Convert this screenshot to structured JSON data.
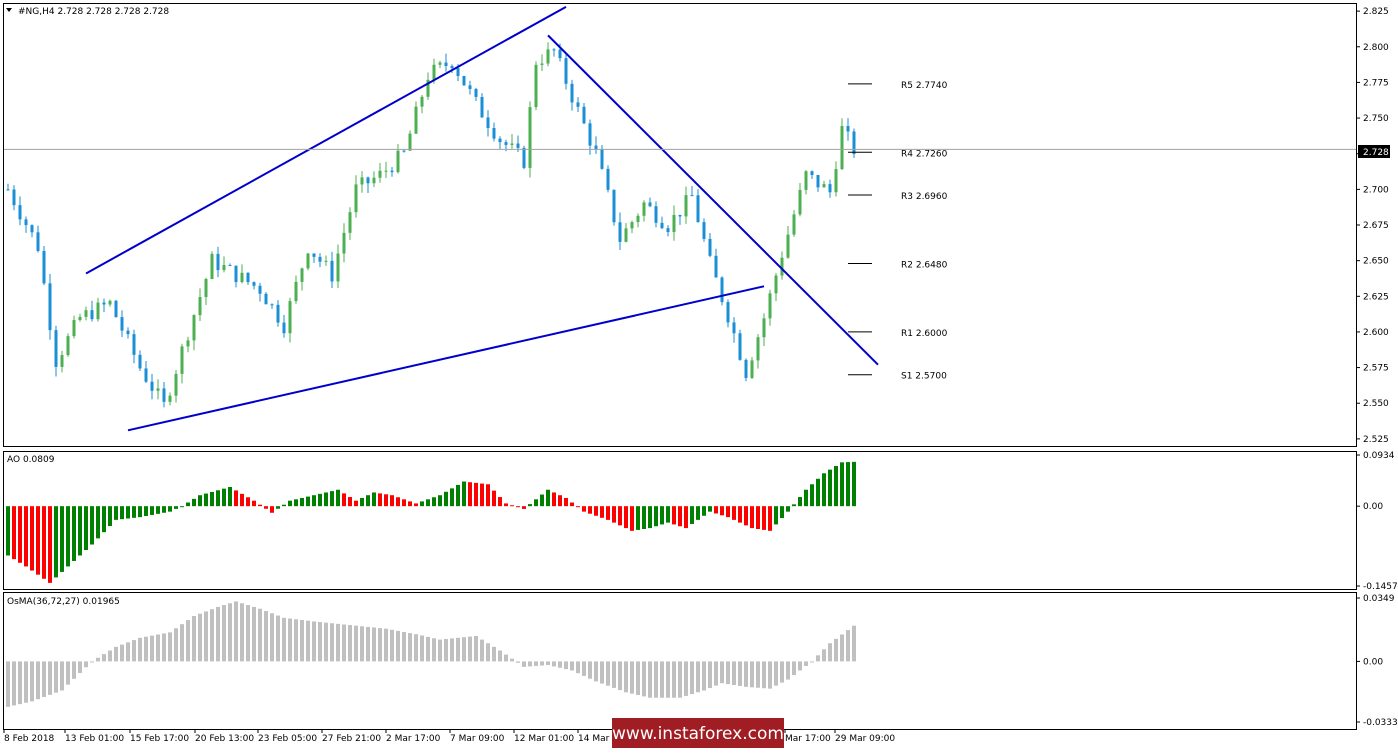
{
  "header": {
    "title": "#NG,H4  2.728 2.728 2.728 2.728"
  },
  "watermark": {
    "text": "www.instaforex.com"
  },
  "x_axis": {
    "labels": [
      "8 Feb 2018",
      "13 Feb 01:00",
      "15 Feb 17:00",
      "20 Feb 13:00",
      "23 Feb 05:00",
      "27 Feb 21:00",
      "2 Mar 17:00",
      "7 Mar 09:00",
      "12 Mar 01:00",
      "14 Mar",
      "",
      "",
      "Mar 17:00",
      "29 Mar 09:00"
    ]
  },
  "colors": {
    "bull": "#4caf50",
    "bear": "#1a8fd6",
    "ao_up": "#008000",
    "ao_down": "#ff0000",
    "osma": "#c0c0c0",
    "trend": "#0000cd",
    "grid": "#000000"
  },
  "chart_data": [
    {
      "type": "candlestick",
      "name": "price",
      "title": "#NG,H4  2.728 2.728 2.728 2.728",
      "ylim": [
        2.52,
        2.83
      ],
      "y_ticks": [
        "2.825",
        "2.800",
        "2.775",
        "2.750",
        "2.725",
        "2.700",
        "2.675",
        "2.650",
        "2.625",
        "2.600",
        "2.575",
        "2.550",
        "2.525"
      ],
      "current_price": "2.728",
      "pivot_levels": [
        {
          "label": "R5 2.7740",
          "value": 2.774
        },
        {
          "label": "R4 2.7260",
          "value": 2.726
        },
        {
          "label": "R3 2.6960",
          "value": 2.696
        },
        {
          "label": "R2 2.6480",
          "value": 2.648
        },
        {
          "label": "R1 2.6000",
          "value": 2.6
        },
        {
          "label": "S1 2.5700",
          "value": 2.57
        }
      ],
      "trend_lines": [
        {
          "name": "upper wedge line",
          "from": [
            13,
            2.641
          ],
          "to": [
            93,
            2.828
          ]
        },
        {
          "name": "lower wedge line",
          "from": [
            20,
            2.531
          ],
          "to": [
            126,
            2.632
          ]
        },
        {
          "name": "falling resistance line",
          "from": [
            90,
            2.808
          ],
          "to": [
            145,
            2.577
          ]
        }
      ],
      "close_path": [
        [
          0,
          2.7
        ],
        [
          5,
          2.66
        ],
        [
          8,
          2.58
        ],
        [
          12,
          2.61
        ],
        [
          17,
          2.62
        ],
        [
          22,
          2.575
        ],
        [
          26,
          2.548
        ],
        [
          30,
          2.6
        ],
        [
          34,
          2.65
        ],
        [
          38,
          2.64
        ],
        [
          42,
          2.63
        ],
        [
          46,
          2.605
        ],
        [
          50,
          2.66
        ],
        [
          54,
          2.64
        ],
        [
          58,
          2.7
        ],
        [
          62,
          2.71
        ],
        [
          66,
          2.725
        ],
        [
          70,
          2.78
        ],
        [
          74,
          2.79
        ],
        [
          78,
          2.76
        ],
        [
          82,
          2.735
        ],
        [
          86,
          2.72
        ],
        [
          88,
          2.79
        ],
        [
          91,
          2.797
        ],
        [
          95,
          2.755
        ],
        [
          98,
          2.725
        ],
        [
          102,
          2.665
        ],
        [
          106,
          2.69
        ],
        [
          110,
          2.675
        ],
        [
          114,
          2.695
        ],
        [
          117,
          2.648
        ],
        [
          120,
          2.612
        ],
        [
          123,
          2.572
        ],
        [
          126,
          2.61
        ],
        [
          129,
          2.655
        ],
        [
          133,
          2.71
        ],
        [
          137,
          2.698
        ],
        [
          139,
          2.742
        ],
        [
          141,
          2.728
        ]
      ]
    },
    {
      "type": "bar",
      "name": "AO",
      "title": "AO 0.0809",
      "ylim": [
        -0.1457,
        0.0934
      ],
      "y_ticks": [
        "0.0934",
        "0.00",
        "-0.1457"
      ],
      "last_value": 0.0809,
      "path": [
        [
          0,
          -0.09
        ],
        [
          3,
          -0.11
        ],
        [
          7,
          -0.14
        ],
        [
          10,
          -0.11
        ],
        [
          14,
          -0.07
        ],
        [
          18,
          -0.025
        ],
        [
          22,
          -0.02
        ],
        [
          27,
          -0.01
        ],
        [
          29,
          0.0
        ],
        [
          32,
          0.02
        ],
        [
          37,
          0.035
        ],
        [
          41,
          0.01
        ],
        [
          44,
          -0.012
        ],
        [
          47,
          0.01
        ],
        [
          51,
          0.02
        ],
        [
          55,
          0.03
        ],
        [
          58,
          0.01
        ],
        [
          61,
          0.025
        ],
        [
          64,
          0.02
        ],
        [
          68,
          0.005
        ],
        [
          72,
          0.02
        ],
        [
          76,
          0.045
        ],
        [
          80,
          0.04
        ],
        [
          83,
          0.005
        ],
        [
          86,
          -0.005
        ],
        [
          90,
          0.03
        ],
        [
          93,
          0.015
        ],
        [
          96,
          -0.01
        ],
        [
          100,
          -0.025
        ],
        [
          104,
          -0.045
        ],
        [
          107,
          -0.04
        ],
        [
          110,
          -0.03
        ],
        [
          113,
          -0.04
        ],
        [
          117,
          -0.01
        ],
        [
          120,
          -0.02
        ],
        [
          124,
          -0.04
        ],
        [
          127,
          -0.045
        ],
        [
          130,
          -0.01
        ],
        [
          133,
          0.03
        ],
        [
          136,
          0.06
        ],
        [
          139,
          0.08
        ],
        [
          141,
          0.0809
        ]
      ]
    },
    {
      "type": "bar",
      "name": "OsMA",
      "title": "OsMA(36,72,27) 0.01965",
      "ylim": [
        -0.03335,
        0.0349
      ],
      "y_ticks": [
        "0.0349",
        "0.00",
        "-0.03335"
      ],
      "last_value": 0.01965,
      "path": [
        [
          0,
          -0.025
        ],
        [
          4,
          -0.022
        ],
        [
          9,
          -0.016
        ],
        [
          14,
          0.0
        ],
        [
          18,
          0.008
        ],
        [
          22,
          0.013
        ],
        [
          27,
          0.016
        ],
        [
          31,
          0.025
        ],
        [
          35,
          0.03
        ],
        [
          38,
          0.033
        ],
        [
          42,
          0.029
        ],
        [
          46,
          0.024
        ],
        [
          51,
          0.022
        ],
        [
          57,
          0.02
        ],
        [
          63,
          0.018
        ],
        [
          68,
          0.015
        ],
        [
          72,
          0.012
        ],
        [
          78,
          0.014
        ],
        [
          82,
          0.006
        ],
        [
          86,
          -0.003
        ],
        [
          90,
          -0.002
        ],
        [
          94,
          -0.005
        ],
        [
          98,
          -0.011
        ],
        [
          103,
          -0.017
        ],
        [
          107,
          -0.02
        ],
        [
          112,
          -0.02
        ],
        [
          116,
          -0.016
        ],
        [
          119,
          -0.012
        ],
        [
          123,
          -0.014
        ],
        [
          127,
          -0.015
        ],
        [
          130,
          -0.01
        ],
        [
          134,
          0.0
        ],
        [
          137,
          0.01
        ],
        [
          141,
          0.01965
        ]
      ]
    }
  ]
}
